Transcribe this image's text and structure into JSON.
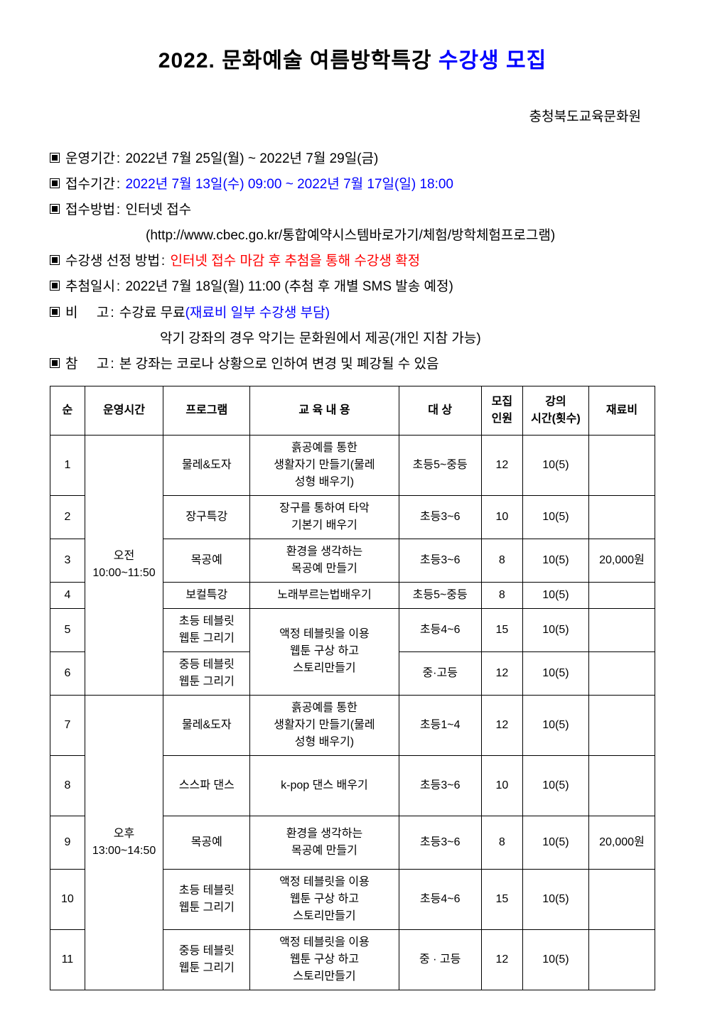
{
  "title_prefix": "2022. 문화예술 여름방학특강 ",
  "title_blue": "수강생 모집",
  "organization": "충청북도교육문화원",
  "info": {
    "period_label": "운영기간",
    "period_value": "2022년 7월 25일(월) ~ 2022년 7월 29일(금)",
    "apply_label": "접수기간",
    "apply_value": "2022년 7월 13일(수) 09:00 ~ 2022년 7월 17일(일) 18:00",
    "method_label": "접수방법",
    "method_value": "인터넷 접수",
    "method_sub": "(http://www.cbec.go.kr/통합예약시스템바로가기/체험/방학체험프로그램)",
    "select_label": "수강생 선정 방법",
    "select_value": "인터넷 접수 마감 후 추첨을 통해 수강생 확정",
    "draw_label": "추첨일시",
    "draw_value": "2022년 7월 18일(월) 11:00 (추첨 후 개별 SMS 발송 예정)",
    "note_label": "비     고",
    "note_value1": "수강료 무료",
    "note_value2": "(재료비 일부 수강생 부담)",
    "note_sub": "악기 강좌의 경우 악기는 문화원에서 제공(개인 지참 가능)",
    "ref_label": "참     고",
    "ref_value": "본 강좌는 코로나 상황으로 인하여 변경 및 폐강될 수 있음"
  },
  "table": {
    "headers": {
      "num": "순",
      "time": "운영시간",
      "program": "프로그램",
      "content": "교 육 내 용",
      "target": "대 상",
      "capacity": "모집\n인원",
      "hours": "강의\n시간(횟수)",
      "fee": "재료비"
    },
    "time_am": "오전\n10:00~11:50",
    "time_pm": "오후\n13:00~14:50",
    "content_webtoon": "액정 테블릿을 이용\n웹툰 구상 하고\n스토리만들기",
    "rows": [
      {
        "n": "1",
        "prog": "물레&도자",
        "content": "흙공예를 통한\n생활자기 만들기(물레\n성형 배우기)",
        "target": "초등5~중등",
        "cap": "12",
        "hours": "10(5)",
        "fee": ""
      },
      {
        "n": "2",
        "prog": "장구특강",
        "content": "장구를 통하여 타악\n기본기 배우기",
        "target": "초등3~6",
        "cap": "10",
        "hours": "10(5)",
        "fee": ""
      },
      {
        "n": "3",
        "prog": "목공예",
        "content": "환경을 생각하는\n목공예 만들기",
        "target": "초등3~6",
        "cap": "8",
        "hours": "10(5)",
        "fee": "20,000원"
      },
      {
        "n": "4",
        "prog": "보컬특강",
        "content": "노래부르는법배우기",
        "target": "초등5~중등",
        "cap": "8",
        "hours": "10(5)",
        "fee": ""
      },
      {
        "n": "5",
        "prog": "초등 테블릿\n웹툰 그리기",
        "target": "초등4~6",
        "cap": "15",
        "hours": "10(5)",
        "fee": ""
      },
      {
        "n": "6",
        "prog": "중등 테블릿\n웹툰 그리기",
        "target": "중·고등",
        "cap": "12",
        "hours": "10(5)",
        "fee": ""
      },
      {
        "n": "7",
        "prog": "물레&도자",
        "content": "흙공예를 통한\n생활자기 만들기(물레\n성형 배우기)",
        "target": "초등1~4",
        "cap": "12",
        "hours": "10(5)",
        "fee": ""
      },
      {
        "n": "8",
        "prog": "스스파 댄스",
        "content": "k-pop 댄스 배우기",
        "target": "초등3~6",
        "cap": "10",
        "hours": "10(5)",
        "fee": ""
      },
      {
        "n": "9",
        "prog": "목공예",
        "content": "환경을 생각하는\n목공예 만들기",
        "target": "초등3~6",
        "cap": "8",
        "hours": "10(5)",
        "fee": "20,000원"
      },
      {
        "n": "10",
        "prog": "초등 테블릿\n웹툰 그리기",
        "content": "액정 테블릿을 이용\n웹툰 구상 하고\n스토리만들기",
        "target": "초등4~6",
        "cap": "15",
        "hours": "10(5)",
        "fee": ""
      },
      {
        "n": "11",
        "prog": "중등 테블릿\n웹툰 그리기",
        "content": "액정 테블릿을 이용\n웹툰 구상 하고\n스토리만들기",
        "target": "중 · 고등",
        "cap": "12",
        "hours": "10(5)",
        "fee": ""
      }
    ]
  }
}
